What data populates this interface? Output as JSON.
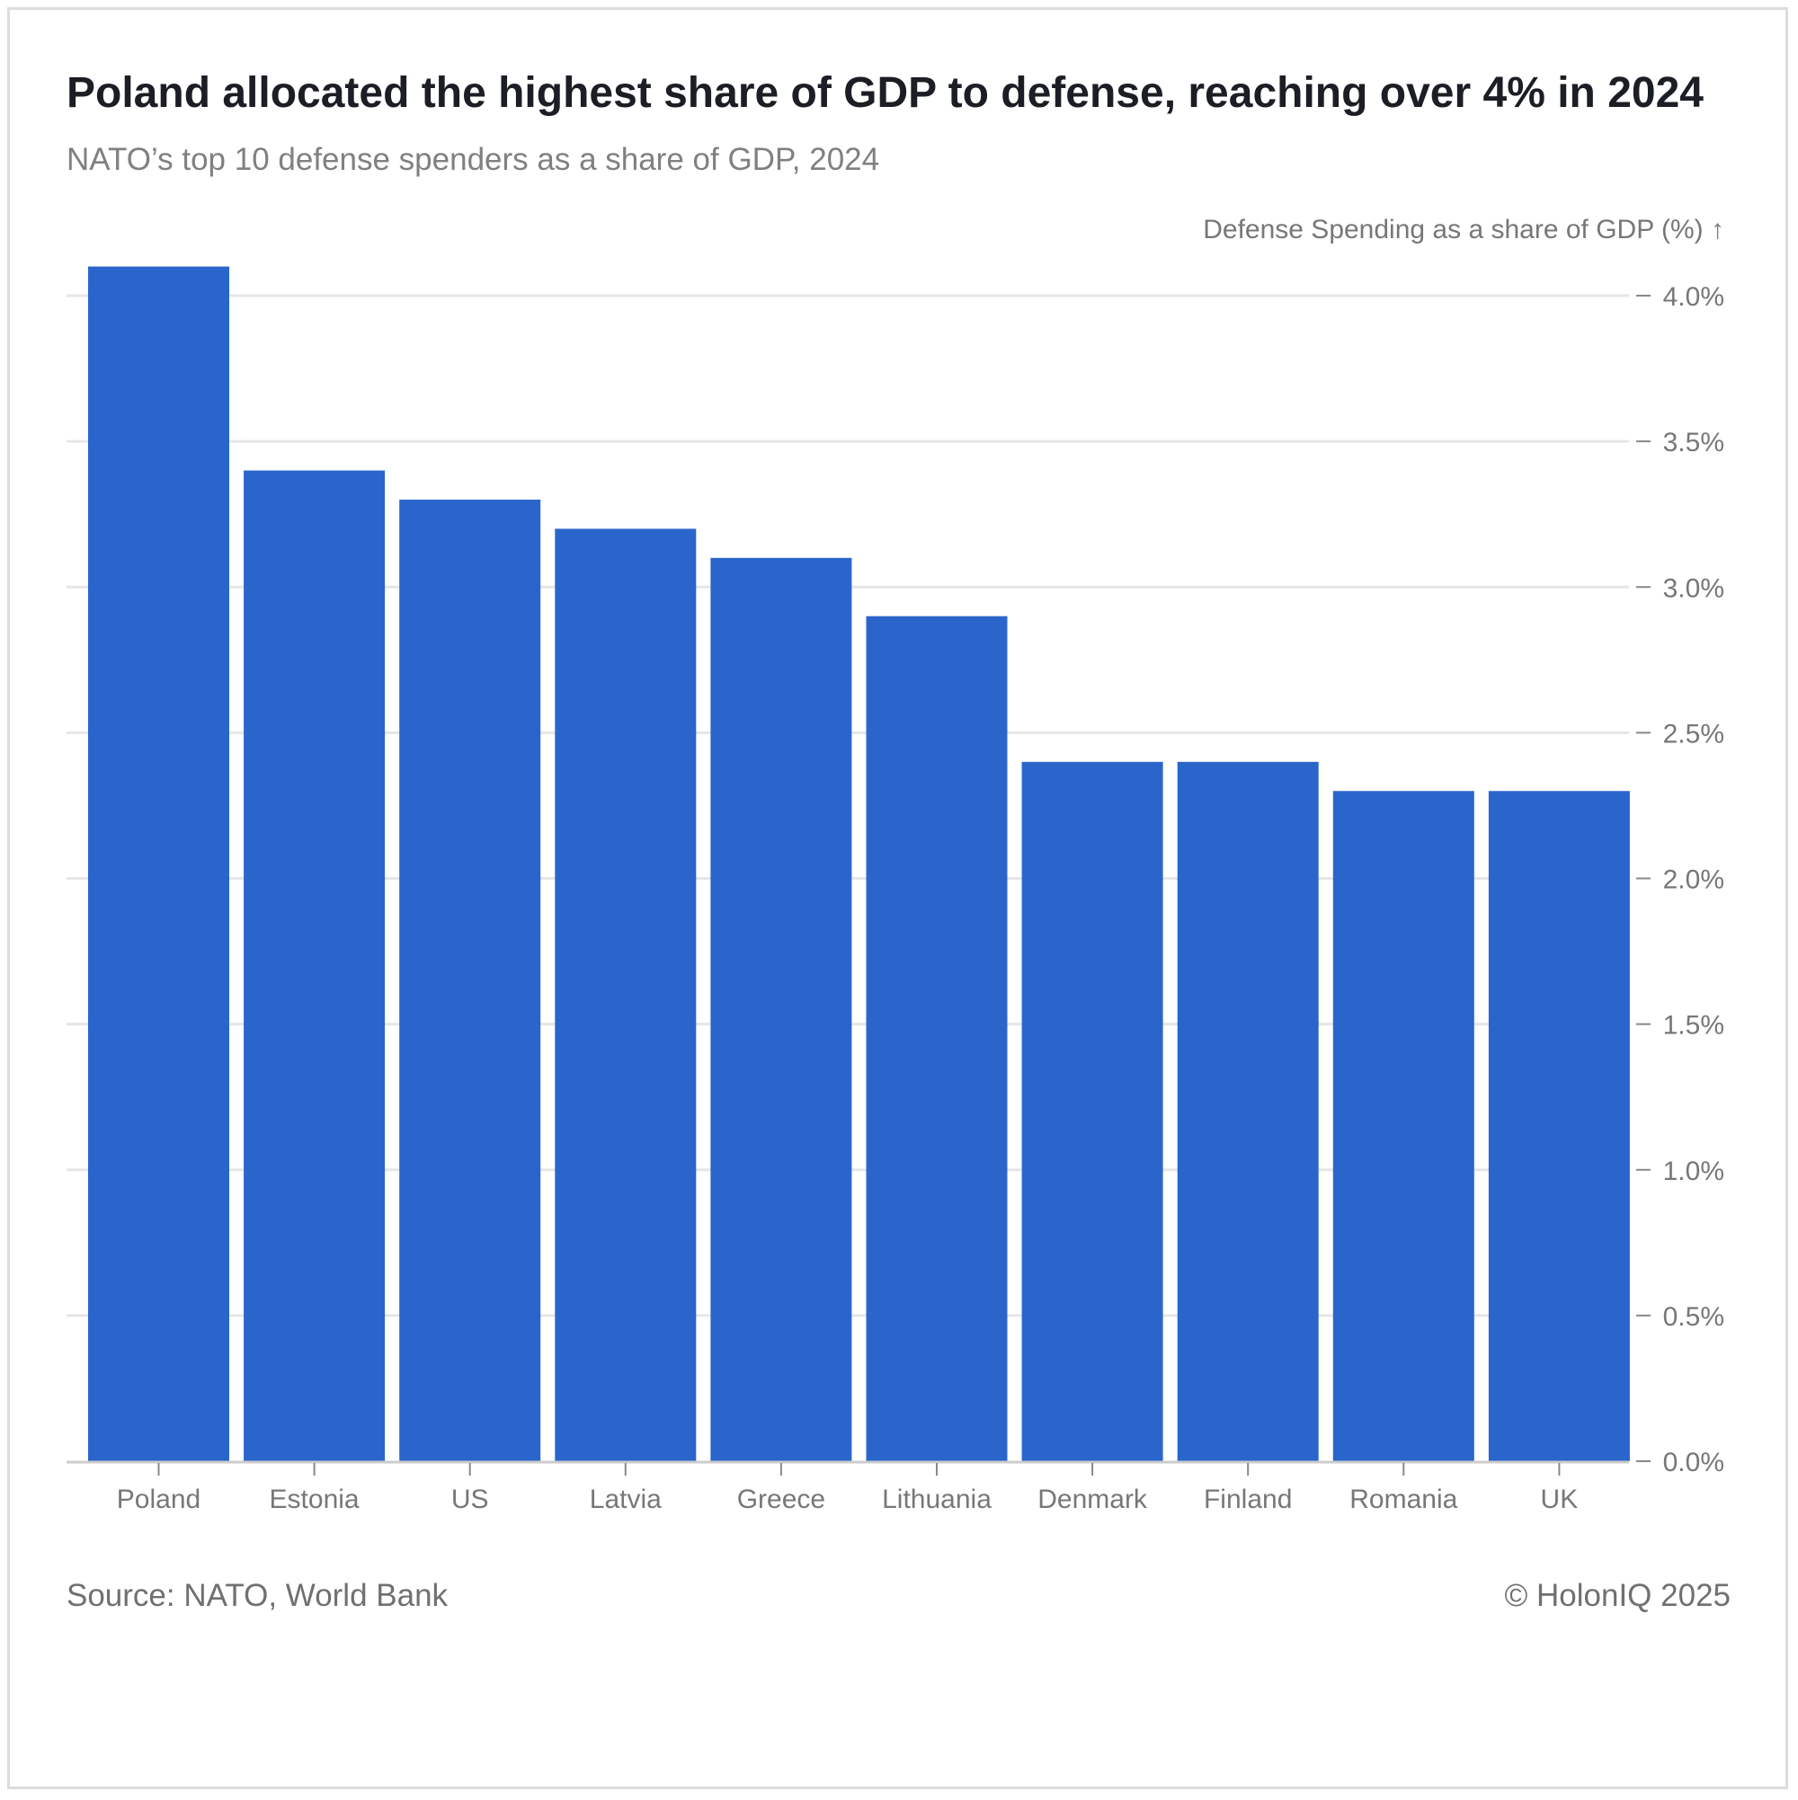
{
  "title": "Poland allocated the highest share of GDP to defense, reaching over 4% in 2024",
  "subtitle": "NATO’s top 10 defense spenders as a share of GDP, 2024",
  "source": "Source: NATO, World Bank",
  "copyright": "© HolonIQ 2025",
  "chart_data": {
    "type": "bar",
    "title": "Poland allocated the highest share of GDP to defense, reaching over 4% in 2024",
    "subtitle": "NATO’s top 10 defense spenders as a share of GDP, 2024",
    "ylabel": "Defense Spending as a share of GDP (%) ↑",
    "xlabel": "",
    "categories": [
      "Poland",
      "Estonia",
      "US",
      "Latvia",
      "Greece",
      "Lithuania",
      "Denmark",
      "Finland",
      "Romania",
      "UK"
    ],
    "values": [
      4.1,
      3.4,
      3.3,
      3.2,
      3.1,
      2.9,
      2.4,
      2.4,
      2.3,
      2.3
    ],
    "ylim": [
      0,
      4.0
    ],
    "yticks": [
      0.0,
      0.5,
      1.0,
      1.5,
      2.0,
      2.5,
      3.0,
      3.5,
      4.0
    ],
    "ytick_labels": [
      "0.0%",
      "0.5%",
      "1.0%",
      "1.5%",
      "2.0%",
      "2.5%",
      "3.0%",
      "3.5%",
      "4.0%"
    ],
    "y_axis_side": "right",
    "grid": true,
    "legend": "none",
    "bar_color": "#2a65cc",
    "grid_color": "#e6e6e6",
    "axis_color": "#cccccc"
  }
}
